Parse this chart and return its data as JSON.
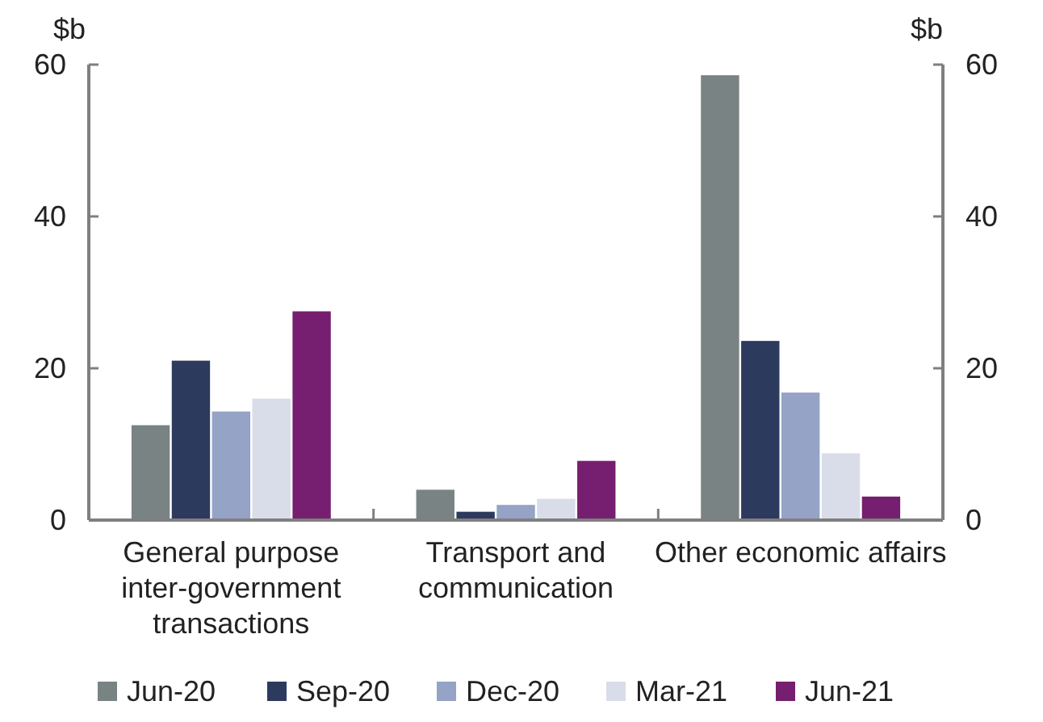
{
  "chart_data": {
    "type": "bar",
    "ylabel": "$b",
    "y2label": "$b",
    "categories": [
      "General purpose inter-government transactions",
      "Transport and communication",
      "Other economic affairs"
    ],
    "series": [
      {
        "name": "Jun-20",
        "color": "#7a8383",
        "values": [
          12.5,
          4.0,
          58.6
        ]
      },
      {
        "name": "Sep-20",
        "color": "#2c3a5e",
        "values": [
          21.0,
          1.1,
          23.6
        ]
      },
      {
        "name": "Dec-20",
        "color": "#94a3c6",
        "values": [
          14.3,
          2.0,
          16.8
        ]
      },
      {
        "name": "Mar-21",
        "color": "#d8dde9",
        "values": [
          16.0,
          2.8,
          8.8
        ]
      },
      {
        "name": "Jun-21",
        "color": "#761e6f",
        "values": [
          27.5,
          7.8,
          3.1
        ]
      }
    ],
    "ylim": [
      0,
      60
    ],
    "yticks": [
      0,
      20,
      40,
      60
    ],
    "y2lim": [
      0,
      60
    ],
    "y2ticks": [
      0,
      20,
      40,
      60
    ],
    "legend": "bottom"
  }
}
